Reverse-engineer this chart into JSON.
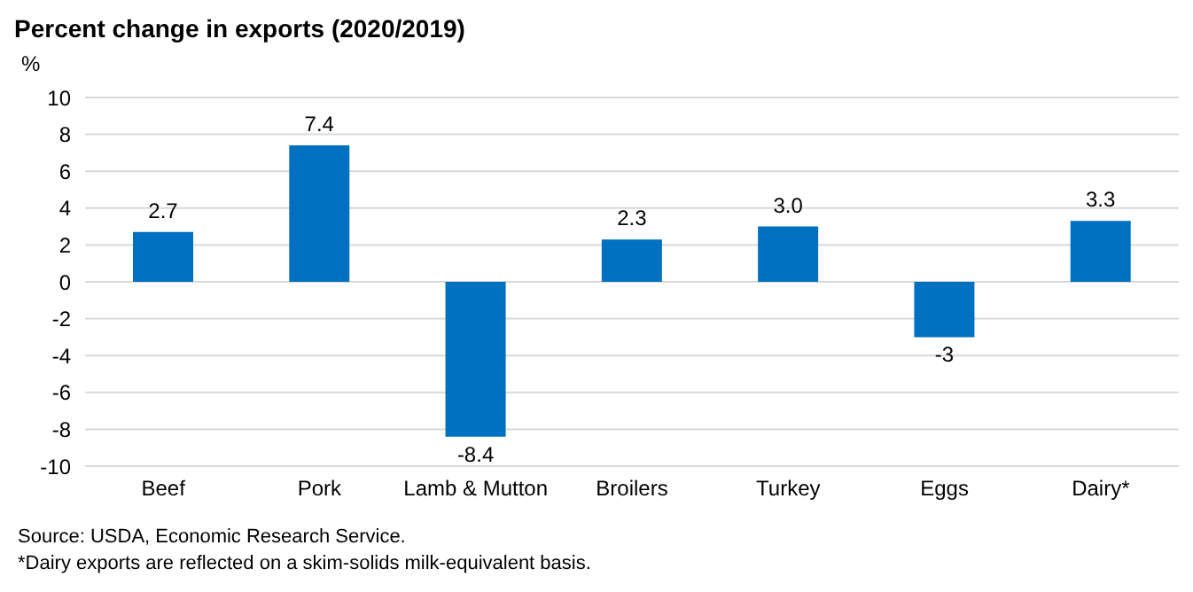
{
  "chart_data": {
    "type": "bar",
    "title": "Percent change in exports (2020/2019)",
    "ylabel": "%",
    "categories": [
      "Beef",
      "Pork",
      "Lamb & Mutton",
      "Broilers",
      "Turkey",
      "Eggs",
      "Dairy*"
    ],
    "values": [
      2.7,
      7.4,
      -8.4,
      2.3,
      3.0,
      -3,
      3.3
    ],
    "value_labels": [
      "2.7",
      "7.4",
      "-8.4",
      "2.3",
      "3.0",
      "-3",
      "3.3"
    ],
    "color": "#0070c0",
    "ylim": [
      -10,
      10
    ],
    "yticks": [
      -10,
      -8,
      -6,
      -4,
      -2,
      0,
      2,
      4,
      6,
      8,
      10
    ],
    "grid": "y",
    "legend": false,
    "annotations": [
      "Source: USDA, Economic Research Service.",
      "*Dairy exports are reflected on a skim-solids milk-equivalent basis."
    ]
  }
}
